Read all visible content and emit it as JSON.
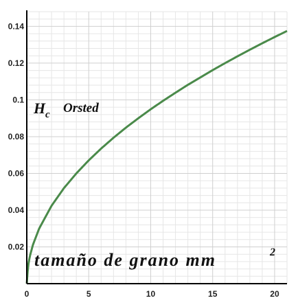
{
  "chart_data": {
    "type": "line",
    "title": "",
    "ylabel": {
      "main": "H",
      "sub": "c",
      "unit": "Orsted"
    },
    "xlabel": {
      "text": "tamaño de grano mm",
      "sup": "2"
    },
    "xlim": [
      0,
      21
    ],
    "ylim": [
      0,
      0.148
    ],
    "x_ticks": [
      0,
      5,
      10,
      15,
      20
    ],
    "x_tick_labels": [
      "0",
      "5",
      "10",
      "15",
      "20"
    ],
    "y_ticks": [
      0.02,
      0.04,
      0.06,
      0.08,
      0.1,
      0.12,
      0.14
    ],
    "y_tick_labels": [
      "0.02",
      "0.04",
      "0.06",
      "0.08",
      "0.1",
      "0.12",
      "0.14"
    ],
    "grid": true,
    "series": [
      {
        "color": "#4a8a4a",
        "x": [
          0,
          0.1,
          0.25,
          0.5,
          1,
          2,
          3,
          4,
          5,
          6,
          7,
          8,
          9,
          10,
          11,
          12,
          13,
          14,
          15,
          16,
          17,
          18,
          19,
          20,
          21
        ],
        "y": [
          0,
          0.0095,
          0.015,
          0.0212,
          0.03,
          0.0424,
          0.052,
          0.06,
          0.0671,
          0.0735,
          0.0794,
          0.0849,
          0.09,
          0.0949,
          0.0995,
          0.1039,
          0.1082,
          0.1122,
          0.1162,
          0.12,
          0.1237,
          0.1273,
          0.1308,
          0.1342,
          0.1375
        ]
      }
    ]
  }
}
